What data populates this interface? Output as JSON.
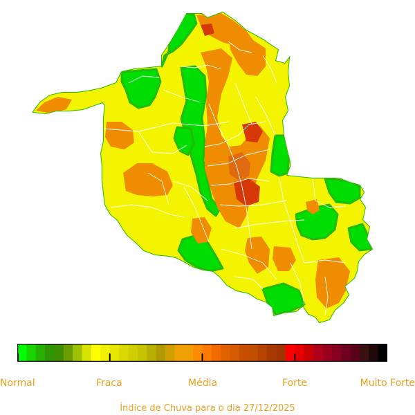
{
  "map": {
    "region": "Rondônia",
    "colors": {
      "outside_ring": "#00dd00",
      "inner_green": "#22bb00",
      "yellow": "#f4f400",
      "yellow_light": "#eaea10",
      "orange": "#f08c00",
      "orange_dark": "#e06a10",
      "red": "#d63808",
      "municipal_lines": "#ffffff"
    }
  },
  "legend": {
    "labels": [
      "Normal",
      "Fraca",
      "Média",
      "Forte",
      "Muito Forte"
    ],
    "colors": [
      "#00ff00",
      "#1ad400",
      "#23b000",
      "#2f9400",
      "#3e8f00",
      "#6a9e00",
      "#9ec200",
      "#d8e400",
      "#ffff00",
      "#f0f000",
      "#e6e600",
      "#d9d900",
      "#cfcf00",
      "#c4c400",
      "#b8b000",
      "#b09a00",
      "#d0a000",
      "#f0a000",
      "#f0a000",
      "#ff8c00",
      "#ff7a00",
      "#f56a00",
      "#e06000",
      "#d65a00",
      "#c84e00",
      "#c05000",
      "#b84200",
      "#a83a00",
      "#a23400",
      "#ff0000",
      "#e80000",
      "#c80000",
      "#b0001a",
      "#9a0020",
      "#880020",
      "#700020",
      "#5a0018",
      "#3a1010",
      "#200808",
      "#000000"
    ]
  },
  "caption": "Índice de Chuva para o dia 27/12/2025"
}
